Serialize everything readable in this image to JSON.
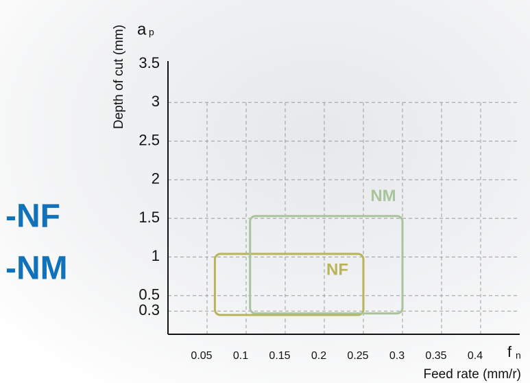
{
  "chart_data": {
    "type": "region",
    "side_labels": [
      "-NF",
      "-NM"
    ],
    "y_symbol": {
      "main": "a",
      "sub": "p"
    },
    "x_symbol": {
      "main": "f",
      "sub": "n"
    },
    "y_label": "Depth of cut (mm)",
    "x_label": "Feed rate (mm/r)",
    "xlim": [
      0,
      0.45
    ],
    "ylim": [
      0,
      3.5
    ],
    "xticks": [
      0.05,
      0.1,
      0.15,
      0.2,
      0.25,
      0.3,
      0.35,
      0.4
    ],
    "yticks": [
      0.3,
      0.5,
      1,
      1.5,
      2,
      2.5,
      3,
      3.5
    ],
    "grid": true,
    "series": [
      {
        "name": "NF",
        "color": "#b8b458",
        "x": [
          0.06,
          0.25
        ],
        "y": [
          0.25,
          1.04
        ]
      },
      {
        "name": "NM",
        "color": "#a9c39c",
        "x": [
          0.105,
          0.3
        ],
        "y": [
          0.27,
          1.53
        ]
      }
    ]
  }
}
